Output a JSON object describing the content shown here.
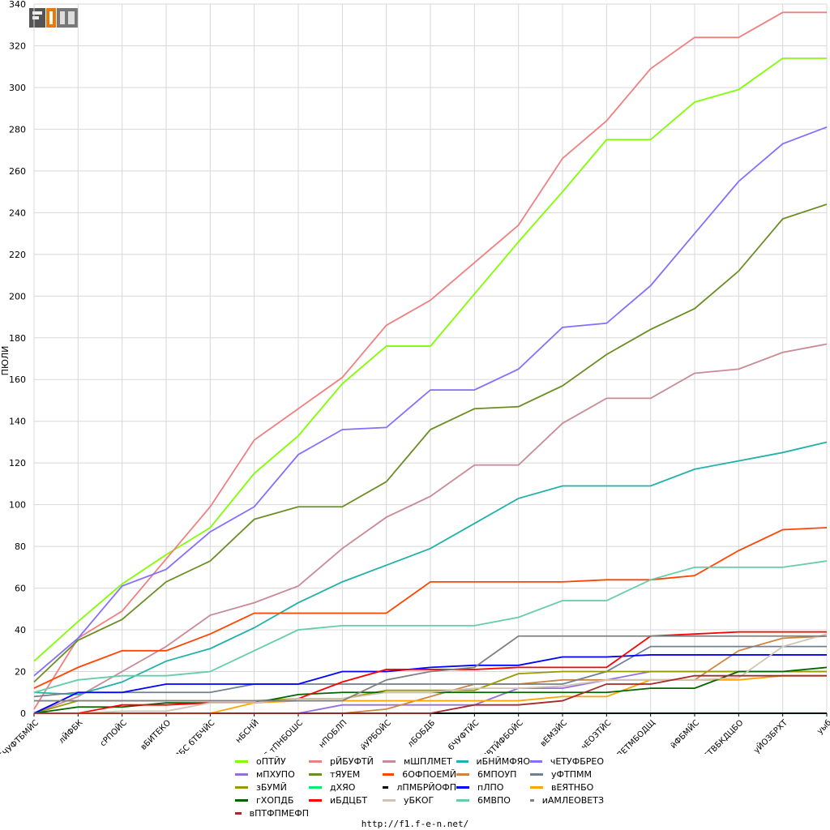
{
  "chart_data": {
    "type": "line",
    "title": "",
    "xlabel": "",
    "ylabel": "ПЮЛИ",
    "ylim": [
      0,
      340
    ],
    "ytick_step": 20,
    "grid": true,
    "legend_position": "bottom",
    "categories": [
      "бЧУФТБМЙС",
      "лЙФБК",
      "сРПОЙС",
      "вБИТЕКО",
      "уБХДПЧУЛБС бТБЧЙС",
      "нБСНЙ",
      "ьНЙМЙС тПНБОШС",
      "нПОБЛП",
      "йУРБОЙС",
      "лБОБДБ",
      "бЧУФТЙС",
      "чЕМЙЛПВТЙФБОЙС",
      "вЕМЗЙС",
      "чЕОЗТЙС",
      "оЙДЕТМБОДЩ",
      "йФБМЙС",
      "бЪЕТВБКДЦБО",
      "уЙОЗБРХТ",
      "уыб"
    ],
    "series": [
      {
        "name": "оПТЙУ",
        "color": "#80ff00",
        "values": [
          25,
          44,
          62,
          76,
          89,
          115,
          133,
          158,
          176,
          176,
          201,
          226,
          250,
          275,
          275,
          293,
          299,
          314,
          314
        ]
      },
      {
        "name": "рЙБУФТЙ",
        "color": "#f08080",
        "values": [
          2,
          36,
          49,
          74,
          99,
          131,
          146,
          161,
          186,
          198,
          216,
          234,
          266,
          284,
          309,
          324,
          324,
          336,
          336
        ]
      },
      {
        "name": "мШПЛМЕТ",
        "color": "#c98a96",
        "values": [
          0,
          8,
          20,
          32,
          47,
          53,
          61,
          79,
          94,
          104,
          119,
          119,
          139,
          151,
          151,
          163,
          165,
          173,
          177
        ]
      },
      {
        "name": "иБНЙМФЯО",
        "color": "#20b2aa",
        "values": [
          10,
          9,
          15,
          25,
          31,
          41,
          53,
          63,
          71,
          79,
          91,
          103,
          109,
          109,
          109,
          117,
          121,
          125,
          130
        ]
      },
      {
        "name": "чЕТУФБРЕО",
        "color": "#8470ff",
        "values": [
          18,
          36,
          61,
          69,
          87,
          99,
          124,
          136,
          137,
          155,
          155,
          165,
          185,
          187,
          205,
          230,
          255,
          273,
          281
        ]
      },
      {
        "name": "мПХУПО",
        "color": "#9370db",
        "values": [
          0,
          0,
          0,
          0,
          0,
          0,
          0,
          4,
          4,
          4,
          4,
          12,
          12,
          16,
          20,
          20,
          20,
          20,
          20
        ]
      },
      {
        "name": "тЯУЕМ",
        "color": "#6b8e23",
        "values": [
          15,
          35,
          45,
          63,
          73,
          93,
          99,
          99,
          111,
          136,
          146,
          147,
          157,
          172,
          184,
          194,
          212,
          237,
          244
        ]
      },
      {
        "name": "бОФПОЕМЙ",
        "color": "#ff4500",
        "values": [
          12,
          22,
          30,
          30,
          38,
          48,
          48,
          48,
          48,
          63,
          63,
          63,
          63,
          64,
          64,
          66,
          78,
          88,
          89
        ]
      },
      {
        "name": "бМПОУП",
        "color": "#cd853f",
        "values": [
          0,
          0,
          0,
          0,
          0,
          0,
          0,
          0,
          2,
          8,
          14,
          14,
          16,
          16,
          16,
          16,
          30,
          36,
          37
        ]
      },
      {
        "name": "уФТПММ",
        "color": "#708090",
        "values": [
          8,
          10,
          10,
          10,
          10,
          14,
          14,
          14,
          14,
          14,
          14,
          14,
          14,
          20,
          32,
          32,
          32,
          32,
          32
        ]
      },
      {
        "name": "зБУМЙ",
        "color": "#999900",
        "values": [
          0,
          6,
          6,
          6,
          6,
          6,
          7,
          7,
          11,
          11,
          11,
          19,
          20,
          20,
          20,
          20,
          20,
          20,
          20
        ]
      },
      {
        "name": "дХЯО",
        "color": "#00ee76",
        "values": [
          0,
          0,
          0,
          0,
          0,
          0,
          0,
          0,
          0,
          0,
          0,
          0,
          0,
          0,
          0,
          0,
          0,
          0,
          0
        ]
      },
      {
        "name": "лПМБРЙОФП",
        "color": "#000000",
        "values": [
          0,
          0,
          0,
          0,
          0,
          0,
          0,
          0,
          0,
          0,
          0,
          0,
          0,
          0,
          0,
          0,
          0,
          0,
          0
        ]
      },
      {
        "name": "пЛПО",
        "color": "#0000ff",
        "values": [
          0,
          10,
          10,
          14,
          14,
          14,
          14,
          20,
          20,
          22,
          23,
          23,
          27,
          27,
          28,
          28,
          28,
          28,
          28
        ]
      },
      {
        "name": "вЕТНБО",
        "color": "#ffa500",
        "values": [
          0,
          0,
          0,
          0,
          0,
          5,
          6,
          6,
          6,
          6,
          6,
          6,
          8,
          8,
          16,
          16,
          16,
          18,
          18
        ]
      },
      {
        "name": "гХОПДБ",
        "color": "#006400",
        "values": [
          0,
          3,
          3,
          5,
          5,
          5,
          9,
          10,
          10,
          10,
          10,
          10,
          10,
          10,
          12,
          12,
          20,
          20,
          22
        ]
      },
      {
        "name": "иБДЦБТ",
        "color": "#ff0000",
        "values": [
          0,
          0,
          4,
          4,
          5,
          5,
          7,
          15,
          21,
          21,
          21,
          22,
          22,
          22,
          37,
          38,
          39,
          39,
          39
        ]
      },
      {
        "name": "уБКОГ",
        "color": "#d2c4b4",
        "values": [
          0,
          0,
          1,
          1,
          5,
          5,
          7,
          7,
          10,
          10,
          12,
          12,
          13,
          16,
          16,
          16,
          17,
          32,
          38
        ]
      },
      {
        "name": "6МВПО",
        "color": "#66cdaa",
        "values": [
          10,
          16,
          18,
          18,
          20,
          30,
          40,
          42,
          42,
          42,
          42,
          46,
          54,
          54,
          64,
          70,
          70,
          70,
          73
        ]
      },
      {
        "name": "иАМЛЕОВЕТЗ",
        "color": "#808080",
        "values": [
          6,
          6,
          6,
          6,
          6,
          6,
          6,
          6,
          16,
          20,
          22,
          37,
          37,
          37,
          37,
          37,
          37,
          37,
          37
        ]
      },
      {
        "name": "вПТФПМЕФП",
        "color": "#a52a2a",
        "values": [
          0,
          0,
          0,
          0,
          0,
          0,
          0,
          0,
          0,
          0,
          4,
          4,
          6,
          14,
          14,
          18,
          18,
          18,
          18
        ]
      }
    ]
  },
  "legend_labels": [
    "оПТЙУ",
    "рЙБУФТЙ",
    "мШПЛМЕТ",
    "иБНЙМФЯО",
    "чЕТУФБРЕО",
    "мПХУПО",
    "тЯУЕМ",
    "6ОФПОЕМЙ",
    "6МПОУП",
    "уФТПММ",
    "зБУМЙ",
    "дХЯО",
    "лПМБРЙОФП",
    "пЛПО",
    "вЕЯТНБО",
    "гХОПДБ",
    "иБДЦБТ",
    "уБКОГ",
    "6МВПО",
    "иАМЛЕОВЕТЗ",
    "вПТФПМЕФП"
  ],
  "footer": {
    "url": "http://f1.f-e-n.net/"
  },
  "logo": {
    "text": "F1EN"
  }
}
